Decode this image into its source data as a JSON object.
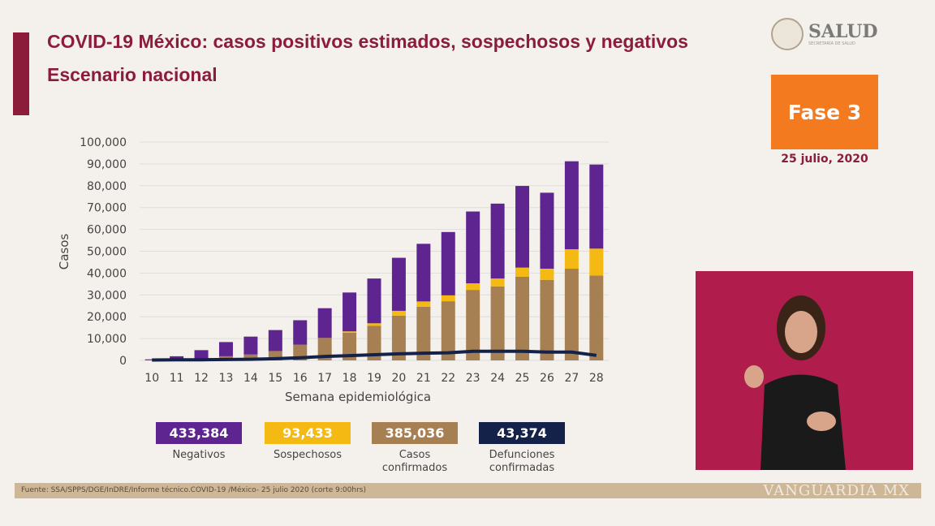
{
  "header": {
    "title": "COVID-19 México: casos positivos estimados, sospechosos y negativos",
    "subtitle": "Escenario nacional"
  },
  "logo": {
    "text": "SALUD",
    "small": "SECRETARÍA DE SALUD"
  },
  "phase": {
    "label": "Fase 3",
    "date": "25 julio, 2020"
  },
  "legend": [
    {
      "value": "433,384",
      "label": "Negativos",
      "color": "#5e2590"
    },
    {
      "value": "93,433",
      "label": "Sospechosos",
      "color": "#f5b914"
    },
    {
      "value": "385,036",
      "label": "Casos confirmados",
      "color": "#a68052"
    },
    {
      "value": "43,374",
      "label": "Defunciones confirmadas",
      "color": "#14224a"
    }
  ],
  "footer": {
    "source": "Fuente: SSA/SPPS/DGE/InDRE/Informe técnico.COVID-19 /México- 25 julio 2020 (corte 9:00hrs)",
    "watermark": "VANGUARDIA MX"
  },
  "chart_data": {
    "type": "bar",
    "stacked": true,
    "xlabel": "Semana epidemiológica",
    "ylabel": "Casos",
    "ylim": [
      0,
      100000
    ],
    "yticks": [
      "0",
      "10,000",
      "20,000",
      "30,000",
      "40,000",
      "50,000",
      "60,000",
      "70,000",
      "80,000",
      "90,000",
      "100,000"
    ],
    "categories": [
      "10",
      "11",
      "12",
      "13",
      "14",
      "15",
      "16",
      "17",
      "18",
      "19",
      "20",
      "21",
      "22",
      "23",
      "24",
      "25",
      "26",
      "27",
      "28"
    ],
    "series": [
      {
        "name": "Casos confirmados",
        "color": "#a68052",
        "values": [
          100,
          300,
          500,
          1900,
          2700,
          4300,
          7200,
          10300,
          12700,
          15900,
          20500,
          24600,
          27100,
          32300,
          33900,
          38300,
          36900,
          42000,
          38900
        ]
      },
      {
        "name": "Sospechosos",
        "color": "#f5b914",
        "values": [
          0,
          0,
          0,
          0,
          0,
          0,
          0,
          0,
          600,
          1100,
          2200,
          2400,
          2700,
          3000,
          3600,
          4200,
          5100,
          8900,
          12300
        ]
      },
      {
        "name": "Negativos",
        "color": "#5e2590",
        "values": [
          400,
          1600,
          4200,
          6500,
          8200,
          9600,
          11200,
          13600,
          17800,
          20500,
          24300,
          26400,
          29000,
          32900,
          34300,
          37400,
          34800,
          40300,
          38500
        ]
      }
    ],
    "line": {
      "name": "Defunciones confirmadas",
      "color": "#14224a",
      "values": [
        200,
        300,
        300,
        400,
        500,
        800,
        1200,
        1800,
        2200,
        2600,
        3000,
        3300,
        3500,
        4200,
        4200,
        4200,
        3800,
        3800,
        2300
      ]
    },
    "grid": true
  }
}
